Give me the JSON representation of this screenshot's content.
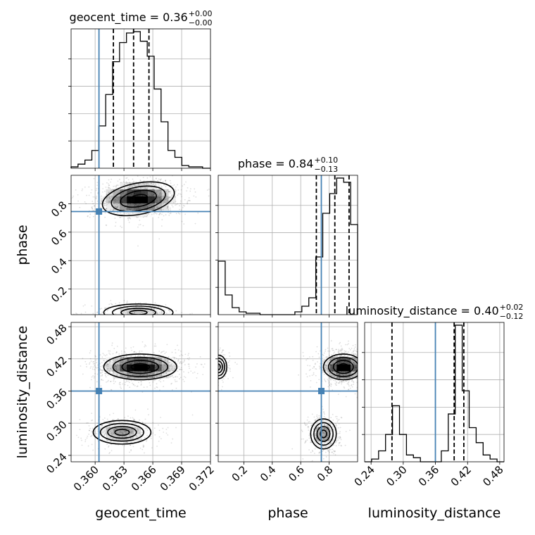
{
  "chart_data": {
    "type": "corner",
    "parameters": [
      "geocent_time",
      "phase",
      "luminosity_distance"
    ],
    "titles": [
      {
        "param": "geocent_time",
        "text": "geocent_time = 0.36",
        "sup": "+0.00",
        "sub": "−0.00"
      },
      {
        "param": "phase",
        "text": "phase = 0.84",
        "sup": "+0.10",
        "sub": "−0.13"
      },
      {
        "param": "luminosity_distance",
        "text": "luminosity_distance = 0.40",
        "sup": "+0.02",
        "sub": "−0.12"
      }
    ],
    "ranges": {
      "geocent_time": [
        0.3575,
        0.372
      ],
      "phase": [
        0.02,
        1.0
      ],
      "luminosity_distance": [
        0.228,
        0.488
      ]
    },
    "ticks": {
      "geocent_time": [
        "0.360",
        "0.363",
        "0.366",
        "0.369",
        "0.372"
      ],
      "phase": [
        "0.2",
        "0.4",
        "0.6",
        "0.8"
      ],
      "luminosity_distance": [
        "0.24",
        "0.30",
        "0.36",
        "0.42",
        "0.48"
      ]
    },
    "truths": {
      "geocent_time": 0.3604,
      "phase": 0.745,
      "luminosity_distance": 0.36
    },
    "quantiles": {
      "geocent_time": [
        0.3619,
        0.364,
        0.3656
      ],
      "phase": [
        0.71,
        0.84,
        0.94
      ],
      "luminosity_distance": [
        0.279,
        0.395,
        0.413
      ]
    },
    "histograms": {
      "geocent_time": {
        "edges": [
          0.3575,
          0.35822,
          0.35894,
          0.35966,
          0.36038,
          0.3611,
          0.36182,
          0.36254,
          0.36326,
          0.36398,
          0.3647,
          0.36542,
          0.36614,
          0.36686,
          0.36758,
          0.3683,
          0.36902,
          0.36974,
          0.37046,
          0.37118,
          0.372
        ],
        "counts": [
          0.01,
          0.03,
          0.06,
          0.13,
          0.31,
          0.54,
          0.78,
          0.92,
          0.99,
          1.0,
          0.93,
          0.82,
          0.58,
          0.34,
          0.13,
          0.08,
          0.02,
          0.01,
          0.01,
          0.0
        ]
      },
      "phase": {
        "edges": [
          0.02,
          0.069,
          0.118,
          0.167,
          0.216,
          0.265,
          0.314,
          0.363,
          0.412,
          0.461,
          0.51,
          0.559,
          0.608,
          0.657,
          0.706,
          0.755,
          0.804,
          0.853,
          0.902,
          0.951,
          1.0
        ],
        "counts": [
          0.38,
          0.14,
          0.05,
          0.02,
          0.01,
          0.01,
          0.0,
          0.0,
          0.0,
          0.0,
          0.0,
          0.02,
          0.06,
          0.12,
          0.41,
          0.72,
          0.86,
          0.97,
          0.94,
          0.64
        ]
      },
      "luminosity_distance": {
        "edges": [
          0.228,
          0.241,
          0.254,
          0.267,
          0.28,
          0.293,
          0.306,
          0.319,
          0.332,
          0.345,
          0.358,
          0.371,
          0.384,
          0.397,
          0.41,
          0.423,
          0.436,
          0.449,
          0.462,
          0.475,
          0.488
        ],
        "counts": [
          0.0,
          0.02,
          0.08,
          0.2,
          0.41,
          0.2,
          0.05,
          0.03,
          0.0,
          0.0,
          0.0,
          0.08,
          0.35,
          1.0,
          0.52,
          0.25,
          0.14,
          0.05,
          0.02,
          0.0
        ]
      }
    },
    "pairs": [
      {
        "x": "geocent_time",
        "y": "phase",
        "modes": [
          {
            "cx": 0.3645,
            "cy": 0.835,
            "sx": 0.0019,
            "sy": 0.055,
            "rot": 0.35,
            "w": 1.0
          },
          {
            "cx": 0.3645,
            "cy": 0.035,
            "sx": 0.0018,
            "sy": 0.03,
            "rot": 0.0,
            "w": 0.3
          }
        ]
      },
      {
        "x": "geocent_time",
        "y": "luminosity_distance",
        "modes": [
          {
            "cx": 0.3647,
            "cy": 0.405,
            "sx": 0.0019,
            "sy": 0.012,
            "rot": 0.0,
            "w": 1.0
          },
          {
            "cx": 0.3628,
            "cy": 0.283,
            "sx": 0.0015,
            "sy": 0.011,
            "rot": 0.0,
            "w": 0.45
          }
        ]
      },
      {
        "x": "phase",
        "y": "luminosity_distance",
        "modes": [
          {
            "cx": 0.9,
            "cy": 0.405,
            "sx": 0.07,
            "sy": 0.012,
            "rot": 0.0,
            "w": 1.0
          },
          {
            "cx": 0.76,
            "cy": 0.28,
            "sx": 0.045,
            "sy": 0.014,
            "rot": 0.0,
            "w": 0.45
          },
          {
            "cx": 0.02,
            "cy": 0.405,
            "sx": 0.03,
            "sy": 0.011,
            "rot": 0.0,
            "w": 0.25
          }
        ]
      }
    ],
    "grid": true
  }
}
